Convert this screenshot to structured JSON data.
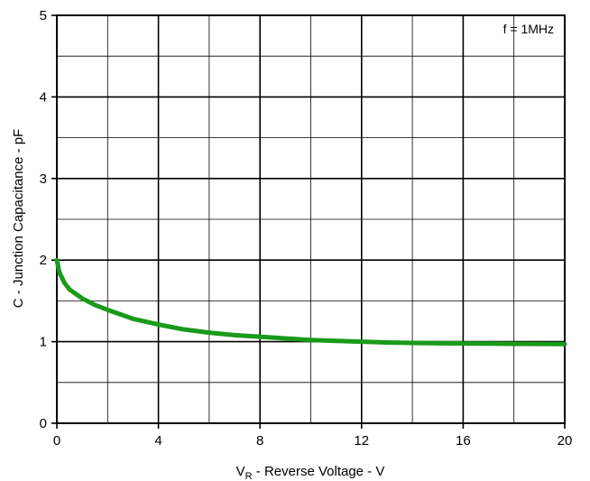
{
  "chart_data": {
    "type": "line",
    "xlabel_main": "V",
    "xlabel_sub": "R",
    "xlabel_rest": " - Reverse Voltage - V",
    "ylabel": "C - Junction Capacitance - pF",
    "annotation": "f = 1MHz",
    "xlim": [
      0,
      20
    ],
    "ylim": [
      0,
      5
    ],
    "x_ticks": [
      "0",
      "4",
      "8",
      "12",
      "16",
      "20"
    ],
    "y_ticks": [
      "0",
      "1",
      "2",
      "3",
      "4",
      "5"
    ],
    "grid": true,
    "line_color": "#1a9a1a",
    "series": [
      {
        "x": [
          0,
          0.1,
          0.3,
          0.5,
          1,
          1.5,
          2,
          3,
          4,
          5,
          6,
          7,
          8,
          9,
          10,
          11,
          12,
          13,
          14,
          15,
          16,
          17,
          18,
          19,
          20
        ],
        "y": [
          2.0,
          1.85,
          1.72,
          1.64,
          1.53,
          1.45,
          1.39,
          1.28,
          1.21,
          1.15,
          1.11,
          1.08,
          1.06,
          1.04,
          1.02,
          1.01,
          1.0,
          0.99,
          0.985,
          0.98,
          0.978,
          0.976,
          0.974,
          0.972,
          0.97
        ]
      }
    ]
  }
}
